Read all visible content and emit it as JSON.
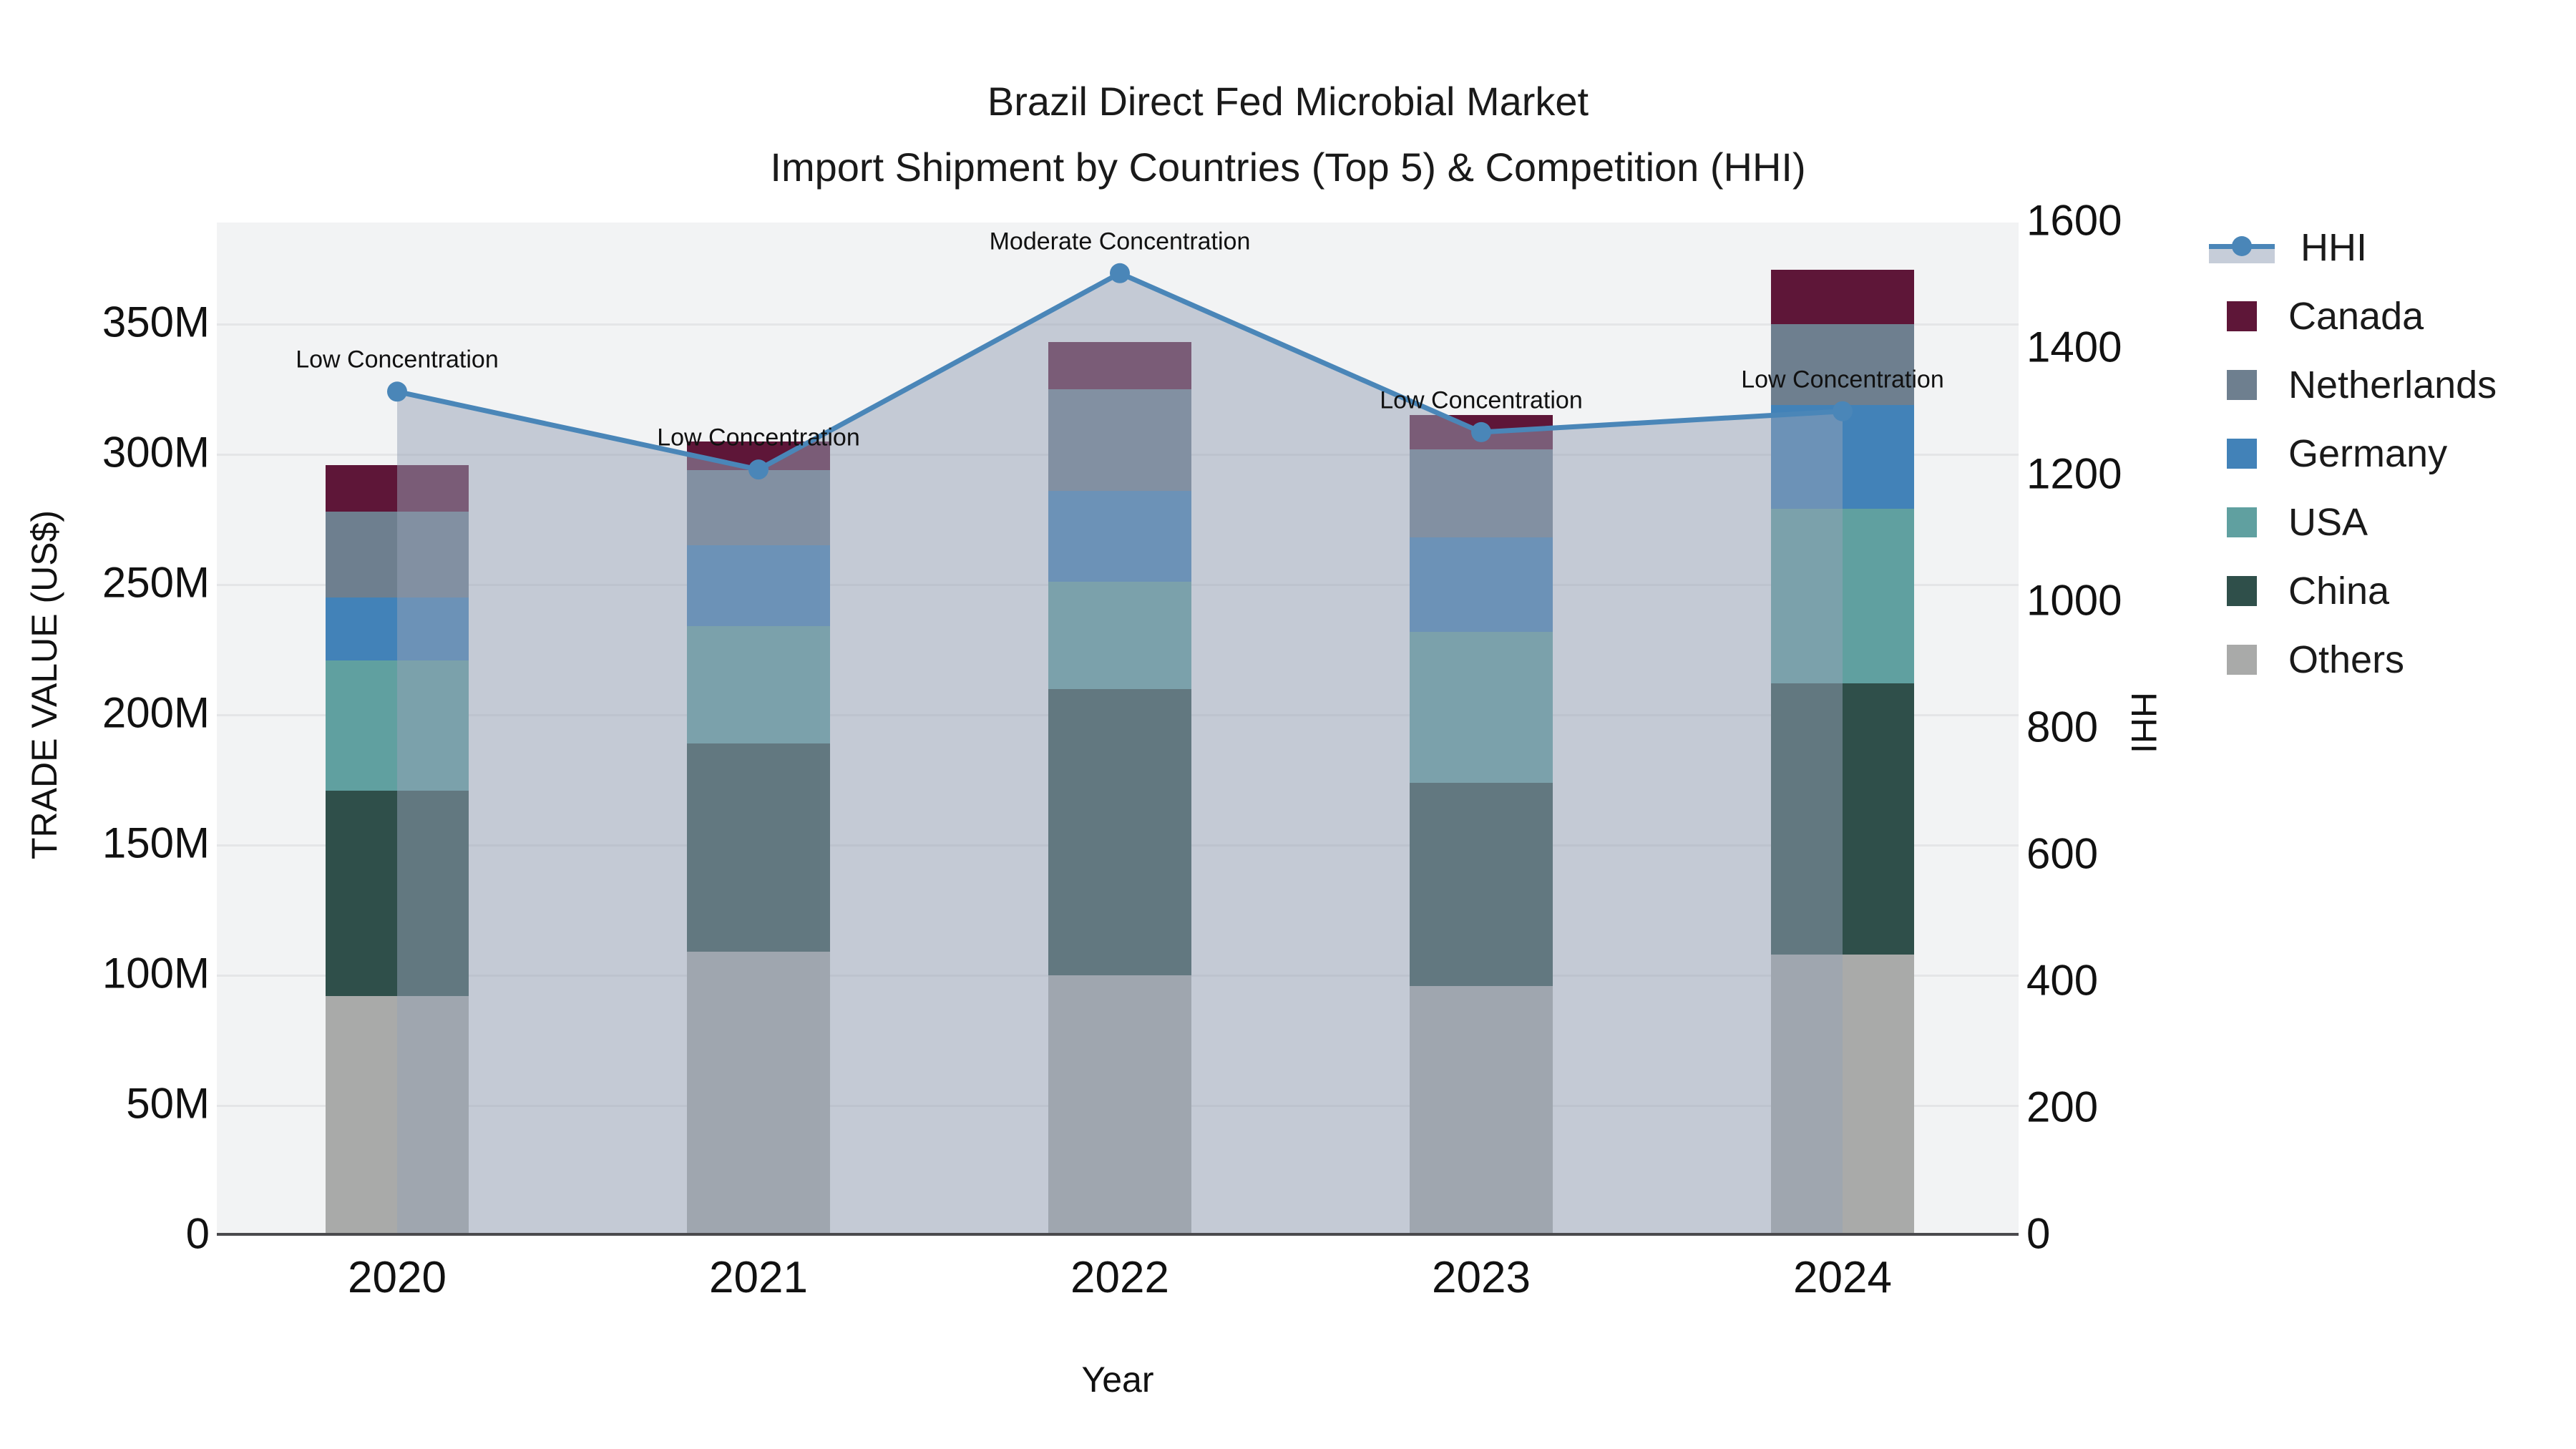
{
  "title": {
    "line1": "Brazil Direct Fed Microbial Market",
    "line2": "Import Shipment by Countries (Top 5) & Competition (HHI)"
  },
  "axes": {
    "left": {
      "label": "TRADE VALUE (US$)",
      "ticks": [
        {
          "label": "0",
          "value": 0
        },
        {
          "label": "50M",
          "value": 50
        },
        {
          "label": "100M",
          "value": 100
        },
        {
          "label": "150M",
          "value": 150
        },
        {
          "label": "200M",
          "value": 200
        },
        {
          "label": "250M",
          "value": 250
        },
        {
          "label": "300M",
          "value": 300
        },
        {
          "label": "350M",
          "value": 350
        }
      ]
    },
    "right": {
      "label": "HHI",
      "ticks": [
        {
          "label": "0",
          "value": 0
        },
        {
          "label": "200",
          "value": 200
        },
        {
          "label": "400",
          "value": 400
        },
        {
          "label": "600",
          "value": 600
        },
        {
          "label": "800",
          "value": 800
        },
        {
          "label": "1000",
          "value": 1000
        },
        {
          "label": "1200",
          "value": 1200
        },
        {
          "label": "1400",
          "value": 1400
        },
        {
          "label": "1600",
          "value": 1600
        }
      ]
    },
    "x": {
      "label": "Year"
    }
  },
  "legend": {
    "items": [
      {
        "label": "HHI",
        "type": "line",
        "color": "#4a86b8"
      },
      {
        "label": "Canada",
        "type": "patch",
        "color": "#5e1638"
      },
      {
        "label": "Netherlands",
        "type": "patch",
        "color": "#6e7f8f"
      },
      {
        "label": "Germany",
        "type": "patch",
        "color": "#4282b8"
      },
      {
        "label": "USA",
        "type": "patch",
        "color": "#60a0a0"
      },
      {
        "label": "China",
        "type": "patch",
        "color": "#2f4f4a"
      },
      {
        "label": "Others",
        "type": "patch",
        "color": "#a9aaa9"
      }
    ]
  },
  "chart_data": {
    "type": "bar",
    "subtype": "stacked-bar-with-line",
    "title": "Brazil Direct Fed Microbial Market — Import Shipment by Countries (Top 5) & Competition (HHI)",
    "xlabel": "Year",
    "ylabel_left": "TRADE VALUE (US$)",
    "ylabel_right": "HHI",
    "ylim_left_millions": [
      0,
      389
    ],
    "ylim_right": [
      0,
      1600
    ],
    "grid": "horizontal",
    "legend_position": "right-outside",
    "categories": [
      "2020",
      "2021",
      "2022",
      "2023",
      "2024"
    ],
    "series": [
      {
        "name": "Others",
        "unit": "US$ millions",
        "color": "#a9aaa9",
        "values": [
          92,
          109,
          100,
          96,
          108
        ]
      },
      {
        "name": "China",
        "unit": "US$ millions",
        "color": "#2f4f4a",
        "values": [
          79,
          80,
          110,
          78,
          104
        ]
      },
      {
        "name": "USA",
        "unit": "US$ millions",
        "color": "#60a0a0",
        "values": [
          50,
          45,
          41,
          58,
          67
        ]
      },
      {
        "name": "Germany",
        "unit": "US$ millions",
        "color": "#4282b8",
        "values": [
          24,
          31,
          35,
          36,
          40
        ]
      },
      {
        "name": "Netherlands",
        "unit": "US$ millions",
        "color": "#6e7f8f",
        "values": [
          33,
          29,
          39,
          34,
          31
        ]
      },
      {
        "name": "Canada",
        "unit": "US$ millions",
        "color": "#5e1638",
        "values": [
          18,
          11,
          18,
          13,
          21
        ]
      }
    ],
    "totals_millions": [
      296,
      305,
      343,
      315,
      371
    ],
    "line_series": {
      "name": "HHI",
      "color": "#4a86b8",
      "area_fill": "rgba(150,162,182,0.5)",
      "values": [
        1333,
        1210,
        1520,
        1269,
        1302
      ]
    },
    "annotations": [
      {
        "category": "2020",
        "text": "Low Concentration"
      },
      {
        "category": "2021",
        "text": "Low Concentration"
      },
      {
        "category": "2022",
        "text": "Moderate Concentration"
      },
      {
        "category": "2023",
        "text": "Low Concentration"
      },
      {
        "category": "2024",
        "text": "Low Concentration"
      }
    ]
  },
  "colors": {
    "plot_background": "#f2f3f4",
    "figure_background": "#ffffff",
    "gridline": "#e4e5e7",
    "axis_spine": "#4a4a4d",
    "text": "#1a1a1a",
    "hhi_line": "#4a86b8",
    "hhi_area": "rgba(150,162,182,0.5)"
  }
}
